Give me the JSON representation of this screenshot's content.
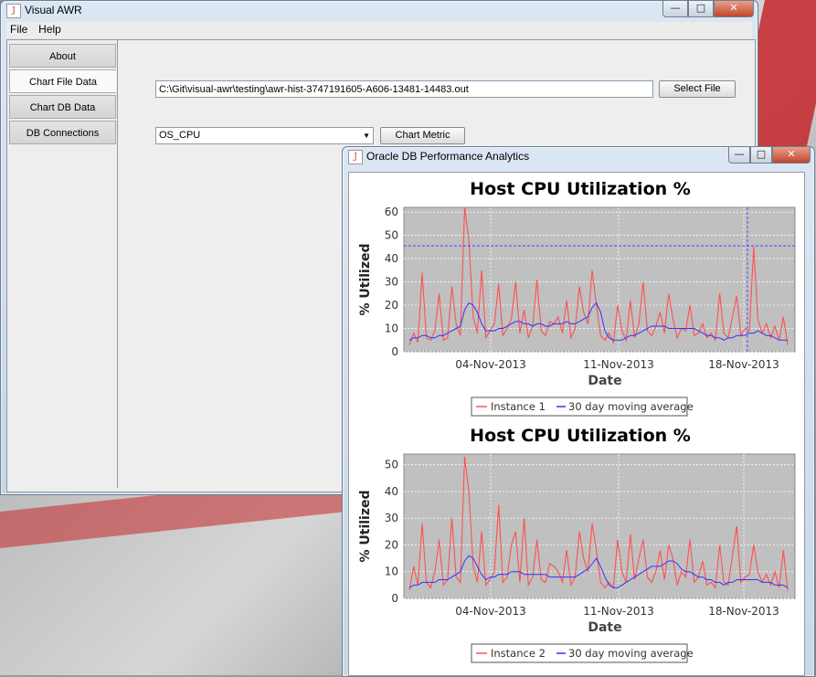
{
  "main_window": {
    "title": "Visual AWR",
    "menu": [
      "File",
      "Help"
    ],
    "tabs": [
      "About",
      "Chart File Data",
      "Chart DB Data",
      "DB Connections"
    ],
    "active_tab": "Chart File Data",
    "file_path": "C:\\Git\\visual-awr\\testing\\awr-hist-3747191605-A606-13481-14483.out",
    "select_file_label": "Select File",
    "metric_selected": "OS_CPU",
    "chart_metric_label": "Chart Metric",
    "window_buttons": [
      "—",
      "□",
      "✕"
    ]
  },
  "analytics_window": {
    "title": "Oracle DB Performance Analytics",
    "window_buttons": [
      "—",
      "□",
      "✕"
    ]
  },
  "colors": {
    "instance_line": "#ff5050",
    "average_line": "#3333ff",
    "plot_bg": "#c0c0c0",
    "crosshair": "#3333ff"
  },
  "chart_data": [
    {
      "type": "line",
      "title": "Host CPU Utilization %",
      "xlabel": "Date",
      "ylabel": "% Utilized",
      "x_ticks": [
        "04-Nov-2013",
        "11-Nov-2013",
        "18-Nov-2013"
      ],
      "y_ticks": [
        0,
        10,
        20,
        30,
        40,
        50,
        60
      ],
      "ylim": [
        0,
        62
      ],
      "crosshair": {
        "y": 45.5,
        "x_date": "20-Nov-2013"
      },
      "series": [
        {
          "name": "Instance 1",
          "values": [
            3,
            8,
            4,
            34,
            6,
            5,
            9,
            25,
            5,
            6,
            28,
            12,
            7,
            62,
            48,
            15,
            8,
            35,
            6,
            9,
            12,
            29,
            7,
            10,
            14,
            30,
            8,
            18,
            6,
            11,
            31,
            9,
            7,
            13,
            12,
            15,
            8,
            22,
            6,
            10,
            28,
            17,
            12,
            35,
            20,
            7,
            5,
            8,
            4,
            20,
            9,
            5,
            22,
            6,
            12,
            30,
            9,
            7,
            11,
            17,
            8,
            25,
            14,
            6,
            10,
            9,
            20,
            7,
            8,
            12,
            6,
            8,
            5,
            25,
            8,
            6,
            15,
            24,
            7,
            10,
            9,
            45,
            14,
            8,
            12,
            6,
            11,
            5,
            15,
            3
          ]
        },
        {
          "name": "30 day moving average",
          "values": [
            5,
            6,
            6,
            7,
            7,
            6,
            6,
            7,
            7,
            8,
            9,
            10,
            11,
            18,
            21,
            20,
            17,
            12,
            9,
            9,
            9,
            10,
            10,
            11,
            12,
            13,
            13,
            12,
            12,
            11,
            12,
            12,
            11,
            11,
            12,
            12,
            12,
            13,
            12,
            12,
            13,
            14,
            15,
            19,
            21,
            17,
            9,
            6,
            5,
            5,
            5,
            6,
            7,
            7,
            8,
            9,
            10,
            11,
            11,
            11,
            11,
            10,
            10,
            10,
            10,
            10,
            10,
            10,
            9,
            8,
            7,
            7,
            6,
            6,
            5,
            6,
            6,
            7,
            7,
            7,
            8,
            8,
            9,
            8,
            7,
            7,
            6,
            5,
            5,
            5
          ]
        }
      ]
    },
    {
      "type": "line",
      "title": "Host CPU Utilization %",
      "xlabel": "Date",
      "ylabel": "% Utilized",
      "x_ticks": [
        "04-Nov-2013",
        "11-Nov-2013",
        "18-Nov-2013"
      ],
      "y_ticks": [
        0,
        10,
        20,
        30,
        40,
        50
      ],
      "ylim": [
        0,
        54
      ],
      "series": [
        {
          "name": "Instance 2",
          "values": [
            3,
            12,
            5,
            28,
            6,
            4,
            10,
            22,
            5,
            7,
            30,
            8,
            6,
            53,
            40,
            12,
            6,
            25,
            5,
            7,
            10,
            35,
            6,
            8,
            20,
            25,
            6,
            30,
            5,
            8,
            22,
            7,
            6,
            13,
            12,
            10,
            6,
            18,
            5,
            8,
            25,
            15,
            10,
            28,
            18,
            6,
            4,
            6,
            4,
            22,
            10,
            6,
            24,
            7,
            15,
            22,
            8,
            6,
            10,
            18,
            7,
            20,
            15,
            5,
            10,
            8,
            22,
            6,
            8,
            14,
            5,
            6,
            4,
            20,
            6,
            5,
            16,
            27,
            6,
            8,
            9,
            20,
            10,
            6,
            9,
            5,
            10,
            4,
            18,
            3
          ]
        },
        {
          "name": "30 day moving average",
          "values": [
            4,
            5,
            5,
            6,
            6,
            6,
            6,
            7,
            7,
            7,
            8,
            9,
            10,
            14,
            16,
            15,
            12,
            9,
            7,
            8,
            8,
            9,
            9,
            9,
            10,
            10,
            10,
            9,
            9,
            9,
            9,
            9,
            9,
            8,
            8,
            8,
            8,
            8,
            8,
            8,
            9,
            10,
            11,
            13,
            15,
            12,
            8,
            5,
            4,
            4,
            5,
            6,
            7,
            8,
            9,
            10,
            11,
            12,
            12,
            12,
            13,
            14,
            14,
            13,
            11,
            10,
            10,
            9,
            8,
            8,
            7,
            7,
            6,
            6,
            5,
            6,
            6,
            7,
            7,
            7,
            7,
            7,
            7,
            6,
            6,
            6,
            5,
            5,
            5,
            4
          ]
        }
      ]
    }
  ]
}
